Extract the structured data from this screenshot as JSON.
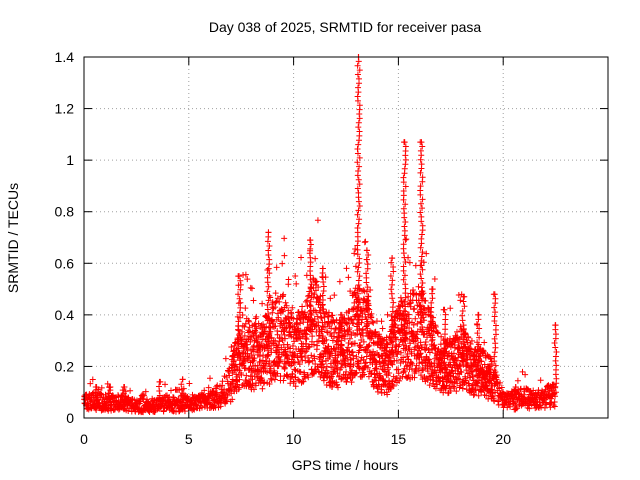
{
  "chart_data": {
    "type": "scatter",
    "title": "Day 038 of 2025, SRMTID for receiver pasa",
    "xlabel": "GPS time / hours",
    "ylabel": "SRMTID / TECUs",
    "xlim": [
      0,
      25
    ],
    "ylim": [
      0,
      1.4
    ],
    "xticks": [
      0,
      5,
      10,
      15,
      20
    ],
    "yticks": [
      0,
      0.2,
      0.4,
      0.6,
      0.8,
      1,
      1.2,
      1.4
    ],
    "ytick_labels": [
      "0",
      "0.2",
      "0.4",
      "0.6",
      "0.8",
      "1",
      "1.2",
      "1.4"
    ],
    "grid": true,
    "marker": "+",
    "color": "#ff0000",
    "series": [
      {
        "name": "SRMTID",
        "envelope_x": [
          0.0,
          0.5,
          1.0,
          1.5,
          2.0,
          2.5,
          3.0,
          3.5,
          4.0,
          4.5,
          5.0,
          5.5,
          6.0,
          6.5,
          7.0,
          7.5,
          8.0,
          8.5,
          9.0,
          9.5,
          10.0,
          10.5,
          11.0,
          11.5,
          12.0,
          12.5,
          13.0,
          13.5,
          14.0,
          14.5,
          15.0,
          15.5,
          16.0,
          16.5,
          17.0,
          17.5,
          18.0,
          18.5,
          19.0,
          19.5,
          20.0,
          20.5,
          21.0,
          21.5,
          22.0,
          22.5
        ],
        "envelope_y": [
          0.06,
          0.07,
          0.06,
          0.06,
          0.06,
          0.05,
          0.05,
          0.05,
          0.06,
          0.05,
          0.06,
          0.06,
          0.07,
          0.09,
          0.14,
          0.28,
          0.24,
          0.25,
          0.3,
          0.32,
          0.26,
          0.3,
          0.38,
          0.28,
          0.26,
          0.26,
          0.35,
          0.33,
          0.22,
          0.2,
          0.3,
          0.32,
          0.35,
          0.28,
          0.22,
          0.2,
          0.24,
          0.2,
          0.18,
          0.15,
          0.07,
          0.07,
          0.08,
          0.07,
          0.08,
          0.1
        ],
        "spikes": [
          {
            "x": 0.6,
            "y": 0.12
          },
          {
            "x": 1.2,
            "y": 0.12
          },
          {
            "x": 1.9,
            "y": 0.12
          },
          {
            "x": 3.6,
            "y": 0.14
          },
          {
            "x": 4.7,
            "y": 0.15
          },
          {
            "x": 7.4,
            "y": 0.55
          },
          {
            "x": 8.8,
            "y": 0.72
          },
          {
            "x": 9.6,
            "y": 0.38
          },
          {
            "x": 10.8,
            "y": 0.69
          },
          {
            "x": 11.4,
            "y": 0.58
          },
          {
            "x": 12.3,
            "y": 0.4
          },
          {
            "x": 13.1,
            "y": 1.4
          },
          {
            "x": 13.5,
            "y": 0.65
          },
          {
            "x": 14.7,
            "y": 0.62
          },
          {
            "x": 15.3,
            "y": 1.07
          },
          {
            "x": 16.1,
            "y": 1.07
          },
          {
            "x": 16.6,
            "y": 0.5
          },
          {
            "x": 17.2,
            "y": 0.42
          },
          {
            "x": 18.1,
            "y": 0.47
          },
          {
            "x": 18.8,
            "y": 0.4
          },
          {
            "x": 19.6,
            "y": 0.48
          },
          {
            "x": 20.6,
            "y": 0.12
          },
          {
            "x": 22.5,
            "y": 0.36
          }
        ]
      }
    ]
  }
}
